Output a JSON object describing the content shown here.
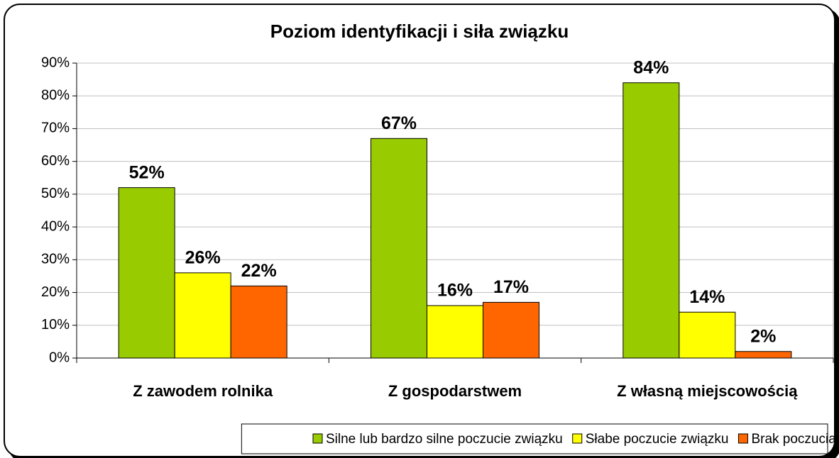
{
  "chart_data": {
    "type": "bar",
    "title": "Poziom identyfikacji i siła związku",
    "categories": [
      "Z zawodem rolnika",
      "Z gospodarstwem",
      "Z własną miejscowością"
    ],
    "series": [
      {
        "name": "Silne lub bardzo silne poczucie związku",
        "color": "#99cc00",
        "values": [
          52,
          67,
          84
        ],
        "value_labels": [
          "52%",
          "67%",
          "84%"
        ]
      },
      {
        "name": "Słabe poczucie związku",
        "color": "#ffff00",
        "values": [
          26,
          16,
          14
        ],
        "value_labels": [
          "26%",
          "16%",
          "14%"
        ]
      },
      {
        "name": "Brak poczucia związku",
        "color": "#ff6600",
        "values": [
          22,
          17,
          2
        ],
        "value_labels": [
          "22%",
          "17%",
          "2%"
        ]
      }
    ],
    "ylim": [
      0,
      90
    ],
    "yticks": [
      {
        "value": 0,
        "label": "0%"
      },
      {
        "value": 10,
        "label": "10%"
      },
      {
        "value": 20,
        "label": "20%"
      },
      {
        "value": 30,
        "label": "30%"
      },
      {
        "value": 40,
        "label": "40%"
      },
      {
        "value": 50,
        "label": "50%"
      },
      {
        "value": 60,
        "label": "60%"
      },
      {
        "value": 70,
        "label": "70%"
      },
      {
        "value": 80,
        "label": "80%"
      },
      {
        "value": 90,
        "label": "90%"
      }
    ],
    "grid": true,
    "legend": "bottom"
  }
}
